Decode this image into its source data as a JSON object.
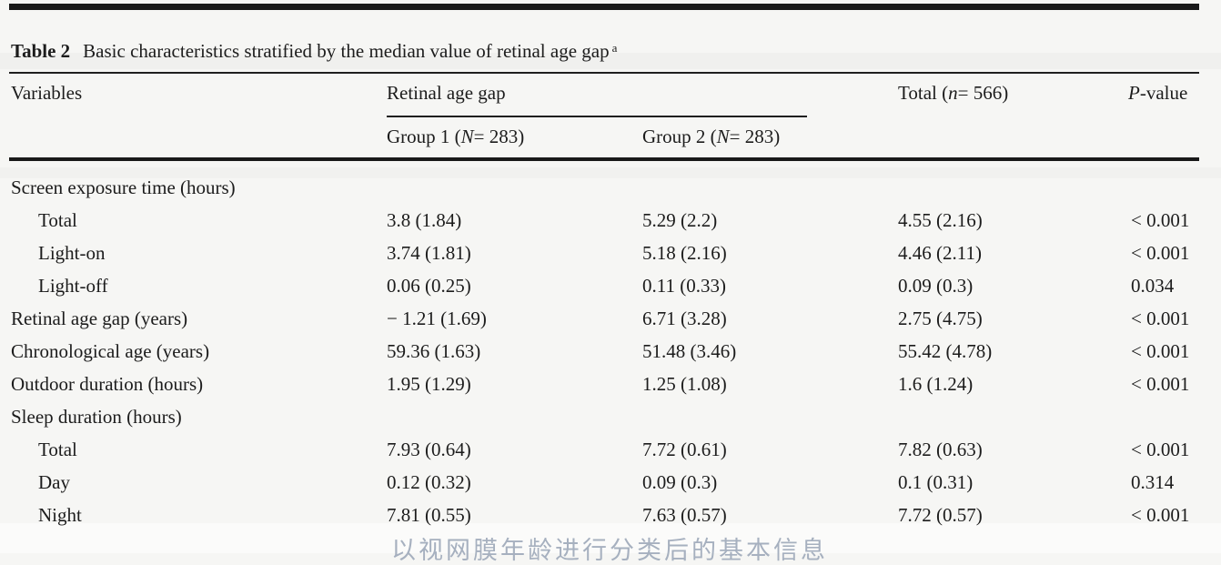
{
  "caption": {
    "label": "Table 2",
    "text": "Basic characteristics stratified by the median value of retinal age gap",
    "footnote_mark": "a"
  },
  "header": {
    "variables": "Variables",
    "group_parent": "Retinal age gap",
    "group1_prefix": "Group 1 (",
    "group1_var": "N",
    "group1_suffix": "= 283)",
    "group2_prefix": "Group 2 (",
    "group2_var": "N",
    "group2_suffix": "= 283)",
    "total_prefix": "Total (",
    "total_var": "n",
    "total_suffix": "= 566)",
    "pvalue_var": "P",
    "pvalue_suffix": "-value"
  },
  "rows": [
    {
      "label": "Screen exposure time (hours)",
      "group1": "",
      "group2": "",
      "total": "",
      "p": ""
    },
    {
      "label": "Total",
      "group1": "3.8 (1.84)",
      "group2": "5.29 (2.2)",
      "total": "4.55 (2.16)",
      "p": "< 0.001"
    },
    {
      "label": "Light-on",
      "group1": "3.74 (1.81)",
      "group2": "5.18 (2.16)",
      "total": "4.46 (2.11)",
      "p": "< 0.001"
    },
    {
      "label": "Light-off",
      "group1": "0.06 (0.25)",
      "group2": "0.11 (0.33)",
      "total": "0.09 (0.3)",
      "p": "0.034"
    },
    {
      "label": "Retinal age gap (years)",
      "group1": "− 1.21 (1.69)",
      "group2": "6.71 (3.28)",
      "total": "2.75 (4.75)",
      "p": "< 0.001"
    },
    {
      "label": "Chronological age (years)",
      "group1": "59.36 (1.63)",
      "group2": "51.48 (3.46)",
      "total": "55.42 (4.78)",
      "p": "< 0.001"
    },
    {
      "label": "Outdoor duration (hours)",
      "group1": "1.95 (1.29)",
      "group2": "1.25 (1.08)",
      "total": "1.6 (1.24)",
      "p": "< 0.001"
    },
    {
      "label": "Sleep duration (hours)",
      "group1": "",
      "group2": "",
      "total": "",
      "p": ""
    },
    {
      "label": "Total",
      "group1": "7.93 (0.64)",
      "group2": "7.72 (0.61)",
      "total": "7.82 (0.63)",
      "p": "< 0.001"
    },
    {
      "label": "Day",
      "group1": "0.12 (0.32)",
      "group2": "0.09 (0.3)",
      "total": "0.1 (0.31)",
      "p": "0.314"
    },
    {
      "label": "Night",
      "group1": "7.81 (0.55)",
      "group2": "7.63 (0.57)",
      "total": "7.72 (0.57)",
      "p": "< 0.001"
    }
  ],
  "bottom_caption": "以视网膜年龄进行分类后的基本信息",
  "colors": {
    "text": "#1c1c1c",
    "rule": "#1f1f1f",
    "background": "#f6f6f4",
    "bottom_caption": "#a6b0bf"
  }
}
